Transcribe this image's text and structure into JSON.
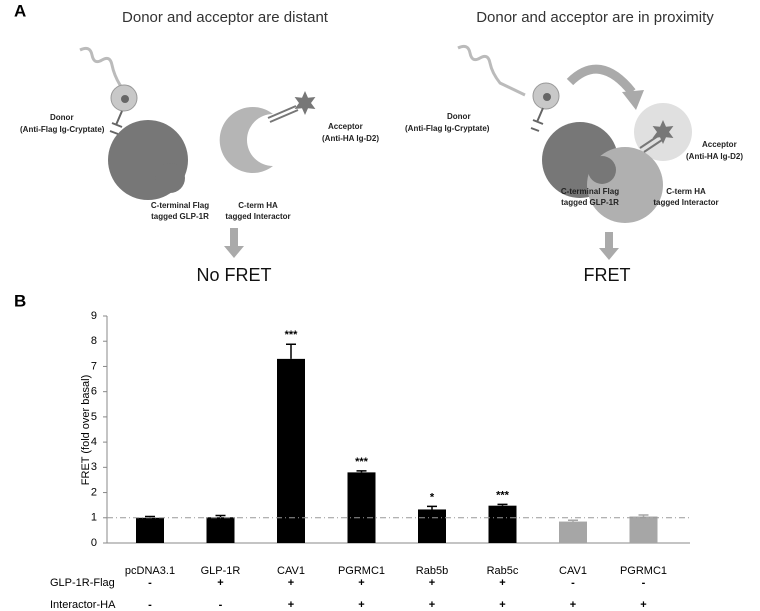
{
  "panel_a": {
    "label": "A",
    "left": {
      "title": "Donor and acceptor are distant",
      "donor": [
        "Donor",
        "(Anti-Flag Ig-Cryptate)"
      ],
      "acceptor": [
        "Acceptor",
        "(Anti-HA Ig-D2)"
      ],
      "receptor": [
        "C-terminal Flag",
        "tagged GLP-1R"
      ],
      "interactor": [
        "C-term HA",
        "tagged Interactor"
      ],
      "result": "No FRET"
    },
    "right": {
      "title": "Donor and acceptor are in proximity",
      "donor": [
        "Donor",
        "(Anti-Flag Ig-Cryptate)"
      ],
      "acceptor": [
        "Acceptor",
        "(Anti-HA Ig-D2)"
      ],
      "receptor": [
        "C-terminal Flag",
        "tagged GLP-1R"
      ],
      "interactor": [
        "C-term HA",
        "tagged Interactor"
      ],
      "result": "FRET"
    }
  },
  "chart_data": {
    "type": "bar",
    "panel_label": "B",
    "y_label": "FRET (fold over basal)",
    "categories": [
      "pcDNA3.1",
      "GLP-1R",
      "CAV1",
      "PGRMC1",
      "Rab5b",
      "Rab5c",
      "CAV1",
      "PGRMC1"
    ],
    "values": [
      1.0,
      1.02,
      7.3,
      2.8,
      1.33,
      1.48,
      0.85,
      1.05
    ],
    "errors": [
      0.05,
      0.07,
      0.58,
      0.06,
      0.12,
      0.05,
      0.05,
      0.06
    ],
    "colors": [
      "#000000",
      "#000000",
      "#000000",
      "#000000",
      "#000000",
      "#000000",
      "#a6a6a6",
      "#a6a6a6"
    ],
    "significance": [
      null,
      null,
      "***",
      "***",
      "*",
      "***",
      null,
      null
    ],
    "reference_line": 1,
    "ylim": [
      0,
      9
    ],
    "yticks": [
      0,
      1,
      2,
      3,
      4,
      5,
      6,
      7,
      8,
      9
    ],
    "conditions": [
      {
        "name": "GLP-1R-Flag",
        "values": [
          "-",
          "+",
          "+",
          "+",
          "+",
          "+",
          "-",
          "-"
        ]
      },
      {
        "name": "Interactor-HA",
        "values": [
          "-",
          "-",
          "+",
          "+",
          "+",
          "+",
          "+",
          "+"
        ]
      }
    ]
  }
}
